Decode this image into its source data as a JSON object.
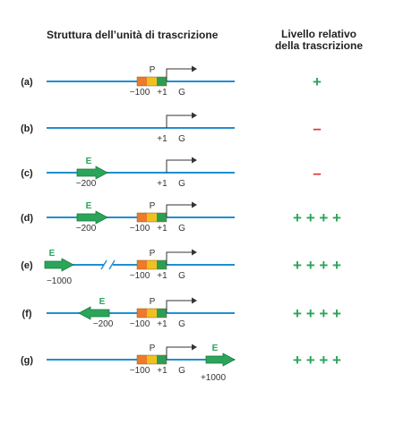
{
  "header": {
    "structure": "Struttura dell’unità di trascrizione",
    "level_line1": "Livello relativo",
    "level_line2": "della trascrizione"
  },
  "colors": {
    "dna": "#1f8fcf",
    "enhancer": "#2aa55a",
    "enhancer_stroke": "#1a7a40",
    "promoter_orange": "#ee7a2a",
    "promoter_yellow": "#f2c01e",
    "promoter_green": "#2a9f54",
    "plus": "#2aa55a",
    "minus": "#e0352f"
  },
  "labels": {
    "promoter": "P",
    "gene": "G",
    "enhancer": "E",
    "minus100": "−100",
    "plus1": "+1"
  },
  "rows": [
    {
      "id": "(a)",
      "promoter": true,
      "enhancer": null,
      "level": "+",
      "level_type": "plus"
    },
    {
      "id": "(b)",
      "promoter": false,
      "enhancer": null,
      "level": "–",
      "level_type": "minus"
    },
    {
      "id": "(c)",
      "promoter": false,
      "enhancer": {
        "pos": "−200",
        "dir": "right"
      },
      "level": "–",
      "level_type": "minus"
    },
    {
      "id": "(d)",
      "promoter": true,
      "enhancer": {
        "pos": "−200",
        "dir": "right"
      },
      "level": "+ + + +",
      "level_type": "plus"
    },
    {
      "id": "(e)",
      "promoter": true,
      "enhancer": {
        "pos": "−1000",
        "dir": "right"
      },
      "break": true,
      "level": "+ + + +",
      "level_type": "plus"
    },
    {
      "id": "(f)",
      "promoter": true,
      "enhancer": {
        "pos": "−200",
        "dir": "left"
      },
      "level": "+ + + +",
      "level_type": "plus"
    },
    {
      "id": "(g)",
      "promoter": true,
      "enhancer": {
        "pos": "+1000",
        "dir": "right",
        "downstream": true
      },
      "level": "+ + + +",
      "level_type": "plus"
    }
  ]
}
